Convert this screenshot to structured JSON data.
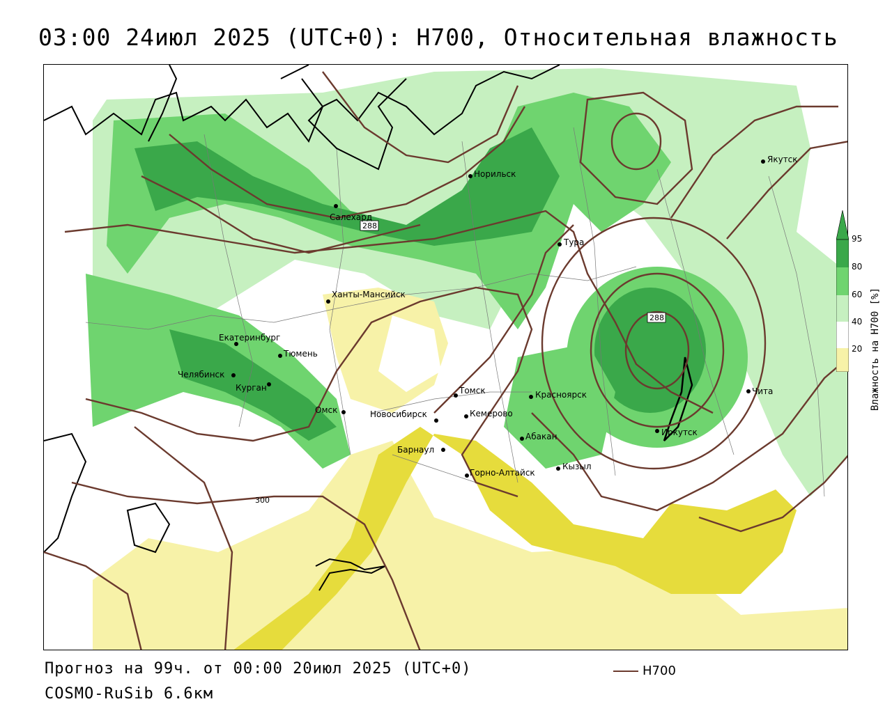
{
  "title": "03:00 24июл 2025 (UTC+0): H700, Относительная влажность",
  "footer": {
    "forecast": "Прогноз на 99ч. от 00:00 20июл 2025 (UTC+0)",
    "model": "COSMO-RuSib 6.6км"
  },
  "line_legend": {
    "label": "H700",
    "color": "#6b3a2e"
  },
  "colorbar": {
    "title": "Влажность на H700 [%]",
    "ticks": [
      "95",
      "80",
      "60",
      "40",
      "20"
    ],
    "colors": {
      "c95": "#3aa84a",
      "c80": "#6fd46f",
      "c60": "#c6f0c0",
      "c40": "#ffffff",
      "c20": "#f7f2a8",
      "c0": "#e6dc3c"
    }
  },
  "cities": [
    {
      "name": "Салехард"
    },
    {
      "name": "Норильск"
    },
    {
      "name": "Якутск"
    },
    {
      "name": "Тура"
    },
    {
      "name": "Ханты-Мансийск"
    },
    {
      "name": "Екатеринбург"
    },
    {
      "name": "Тюмень"
    },
    {
      "name": "Челябинск"
    },
    {
      "name": "Курган"
    },
    {
      "name": "Омск"
    },
    {
      "name": "Новосибирск"
    },
    {
      "name": "Томск"
    },
    {
      "name": "Кемерово"
    },
    {
      "name": "Барнаул"
    },
    {
      "name": "Горно-Алтайск"
    },
    {
      "name": "Абакан"
    },
    {
      "name": "Красноярск"
    },
    {
      "name": "Кызыл"
    },
    {
      "name": "Иркутск"
    },
    {
      "name": "Чита"
    }
  ],
  "contour_labels": [
    "288",
    "288",
    "300"
  ]
}
